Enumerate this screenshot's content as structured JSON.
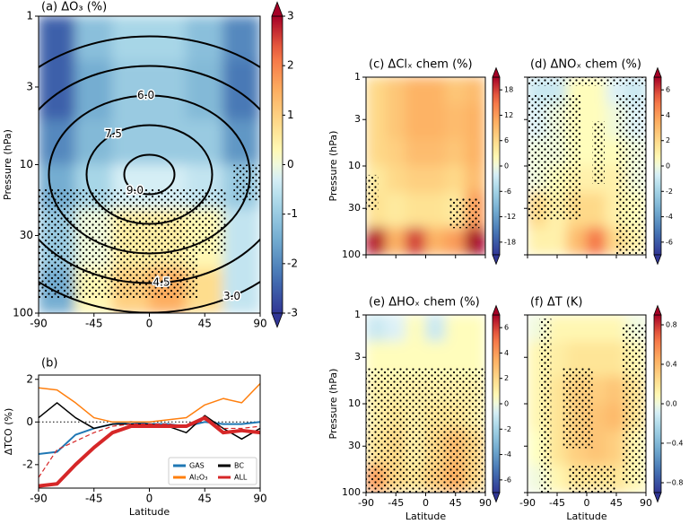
{
  "chart_data": [
    {
      "type": "contour",
      "title": "(a) ΔO₃ (%)",
      "y_label": "Pressure (hPa)",
      "xlim": [
        -90,
        90
      ],
      "xticks": [
        -90,
        -45,
        0,
        45,
        90
      ],
      "ylim": [
        100,
        1
      ],
      "yticks": [
        1,
        3,
        10,
        30,
        100
      ],
      "log_scale": true,
      "lat_edges": [
        -90,
        -60,
        -30,
        0,
        30,
        60,
        90
      ],
      "pressure_edges": [
        1,
        2,
        5,
        10,
        20,
        50,
        100
      ],
      "z": [
        [
          -2.5,
          -1.2,
          -0.8,
          -0.8,
          -1.2,
          -2
        ],
        [
          -2.5,
          -1.5,
          -1,
          -1,
          -1.3,
          -2.2
        ],
        [
          -2,
          -1.3,
          -1,
          -1,
          -1,
          -1.8
        ],
        [
          -1.5,
          -0.8,
          -0.3,
          -0.3,
          -0.5,
          -1
        ],
        [
          -1,
          0,
          0.5,
          0.5,
          0.3,
          -0.5
        ],
        [
          -1.5,
          0.3,
          1,
          1.5,
          0.8,
          -0.5
        ]
      ],
      "clim": [
        -3,
        3
      ],
      "cbar_ticks": [
        -3,
        -2,
        -1,
        0,
        1,
        2,
        3
      ],
      "contours": [
        {
          "value": 3,
          "label": "3.0"
        },
        {
          "value": 4.5,
          "label": "4.5"
        },
        {
          "value": 6,
          "label": "6.0"
        },
        {
          "value": 7.5,
          "label": "7.5"
        },
        {
          "value": 9,
          "label": "9.0"
        }
      ]
    },
    {
      "type": "line",
      "title": "(b)",
      "x_label": "Latitude",
      "y_label": "ΔTCO (%)",
      "x": [
        -90,
        -75,
        -60,
        -45,
        -30,
        -15,
        0,
        15,
        30,
        45,
        60,
        75,
        90
      ],
      "xlim": [
        -90,
        90
      ],
      "xticks": [
        -90,
        -45,
        0,
        45,
        90
      ],
      "ylim": [
        -3.1,
        2.2
      ],
      "yticks": [
        -2,
        0,
        2
      ],
      "zero_line": true,
      "legend": "lower right",
      "series": [
        {
          "name": "GAS",
          "color": "#1f77b4",
          "width": 2,
          "values": [
            -1.5,
            -1.4,
            -0.6,
            -0.3,
            -0.1,
            0,
            -0.1,
            -0.1,
            -0.2,
            0,
            -0.1,
            -0.1,
            0
          ]
        },
        {
          "name": "BC",
          "color": "#000000",
          "width": 1.5,
          "values": [
            0.2,
            0.9,
            0.2,
            -0.3,
            -0.1,
            -0.1,
            -0.1,
            -0.2,
            -0.5,
            0.3,
            -0.3,
            -0.8,
            -0.3
          ]
        },
        {
          "name": "Al₂O₃",
          "color": "#ff7f0e",
          "width": 1.5,
          "values": [
            1.6,
            1.5,
            0.9,
            0.2,
            0,
            0,
            0,
            0.1,
            0.2,
            0.8,
            1.1,
            0.9,
            1.8
          ]
        },
        {
          "name": "ALL",
          "color": "#d62728",
          "width": 4,
          "values": [
            -3,
            -2.9,
            -2,
            -1.2,
            -0.5,
            -0.2,
            -0.2,
            -0.2,
            -0.2,
            0.2,
            -0.5,
            -0.4,
            -0.5
          ]
        },
        {
          "color": "#d62728",
          "width": 1.2,
          "dashed": true,
          "values": [
            -2.6,
            -1.3,
            -0.9,
            -0.5,
            -0.2,
            -0.1,
            -0.1,
            -0.1,
            -0.2,
            0.1,
            -0.3,
            -0.3,
            -0.2
          ]
        }
      ]
    },
    {
      "type": "contour",
      "title": "(c) ΔClₓ chem (%)",
      "y_label": "Pressure (hPa)",
      "show_x_tick_labels": false,
      "xlim": [
        -90,
        90
      ],
      "xticks": [
        -90,
        -45,
        0,
        45,
        90
      ],
      "ylim": [
        100,
        1
      ],
      "yticks": [
        1,
        3,
        10,
        30,
        100
      ],
      "log_scale": true,
      "lat_edges": [
        -90,
        -60,
        -30,
        0,
        30,
        60,
        90
      ],
      "pressure_edges": [
        1,
        2,
        5,
        10,
        20,
        50,
        100
      ],
      "z": [
        [
          6,
          8,
          10,
          10,
          8,
          9
        ],
        [
          6,
          8,
          10,
          10,
          9,
          10
        ],
        [
          6,
          7,
          9,
          9,
          8,
          10
        ],
        [
          4,
          6,
          7,
          7,
          6,
          9
        ],
        [
          5,
          4,
          5,
          5,
          4,
          12
        ],
        [
          20,
          10,
          18,
          10,
          12,
          22
        ]
      ],
      "clim": [
        -21,
        21
      ],
      "cbar_ticks": [
        -18,
        -12,
        -6,
        0,
        6,
        12,
        18
      ]
    },
    {
      "type": "contour",
      "title": "(d) ΔNOₓ chem (%)",
      "show_x_tick_labels": false,
      "show_y_tick_labels": false,
      "xlim": [
        -90,
        90
      ],
      "xticks": [
        -90,
        -45,
        0,
        45,
        90
      ],
      "ylim": [
        100,
        1
      ],
      "yticks": [
        1,
        3,
        10,
        30,
        100
      ],
      "log_scale": true,
      "lat_edges": [
        -90,
        -60,
        -30,
        0,
        30,
        60,
        90
      ],
      "pressure_edges": [
        1,
        2,
        5,
        10,
        20,
        50,
        100
      ],
      "z": [
        [
          -1,
          -1,
          0.5,
          0.5,
          -0.5,
          -1
        ],
        [
          -0.5,
          0,
          0.5,
          0.5,
          0,
          -0.5
        ],
        [
          0,
          0,
          0.5,
          0.5,
          0.5,
          0
        ],
        [
          0,
          0.5,
          1,
          1,
          1,
          0
        ],
        [
          2,
          1,
          2,
          2,
          1,
          0.5
        ],
        [
          1,
          1,
          3,
          5,
          2,
          1
        ]
      ],
      "clim": [
        -7,
        7
      ],
      "cbar_ticks": [
        -6,
        -4,
        -2,
        0,
        2,
        4,
        6
      ]
    },
    {
      "type": "contour",
      "title": "(e) ΔHOₓ chem (%)",
      "x_label": "Latitude",
      "y_label": "Pressure (hPa)",
      "xlim": [
        -90,
        90
      ],
      "xticks": [
        -90,
        -45,
        0,
        45,
        90
      ],
      "ylim": [
        100,
        1
      ],
      "yticks": [
        1,
        3,
        10,
        30,
        100
      ],
      "log_scale": true,
      "lat_edges": [
        -90,
        -60,
        -30,
        0,
        30,
        60,
        90
      ],
      "pressure_edges": [
        1,
        2,
        5,
        10,
        20,
        50,
        100
      ],
      "z": [
        [
          -1,
          -0.5,
          0.5,
          -1,
          0.5,
          0.5
        ],
        [
          0.5,
          0.5,
          0.5,
          0.5,
          0.5,
          0.5
        ],
        [
          1,
          1,
          1,
          1,
          1,
          1
        ],
        [
          1,
          1.5,
          1,
          1.5,
          1.5,
          1
        ],
        [
          1.5,
          2,
          1,
          2,
          3,
          2
        ],
        [
          4,
          2,
          1.5,
          2.5,
          3.5,
          2
        ]
      ],
      "clim": [
        -7,
        7
      ],
      "cbar_ticks": [
        -6,
        -4,
        -2,
        0,
        2,
        4,
        6
      ]
    },
    {
      "type": "contour",
      "title": "(f) ΔT (K)",
      "x_label": "Latitude",
      "show_y_tick_labels": false,
      "xlim": [
        -90,
        90
      ],
      "xticks": [
        -90,
        -45,
        0,
        45,
        90
      ],
      "ylim": [
        100,
        1
      ],
      "yticks": [
        1,
        3,
        10,
        30,
        100
      ],
      "log_scale": true,
      "lat_edges": [
        -90,
        -60,
        -30,
        0,
        30,
        60,
        90
      ],
      "pressure_edges": [
        1,
        2,
        5,
        10,
        20,
        50,
        100
      ],
      "z": [
        [
          0,
          0.1,
          0.1,
          0.1,
          0.1,
          0
        ],
        [
          0.1,
          0.15,
          0.2,
          0.2,
          0.2,
          0.1
        ],
        [
          0.1,
          0.2,
          0.3,
          0.3,
          0.35,
          0.2
        ],
        [
          0.1,
          0.2,
          0.3,
          0.35,
          0.4,
          0.2
        ],
        [
          0.05,
          0.2,
          0.3,
          0.35,
          0.3,
          0.1
        ],
        [
          0,
          0.1,
          0.2,
          0.2,
          0.2,
          0.1
        ]
      ],
      "clim": [
        -0.9,
        0.9
      ],
      "cbar_ticks": [
        {
          "value": -0.8,
          "label": "−0.8"
        },
        {
          "value": -0.4,
          "label": "−0.4"
        },
        {
          "value": 0,
          "label": "0.0"
        },
        {
          "value": 0.4,
          "label": "0.4"
        },
        {
          "value": 0.8,
          "label": "0.8"
        }
      ]
    }
  ]
}
